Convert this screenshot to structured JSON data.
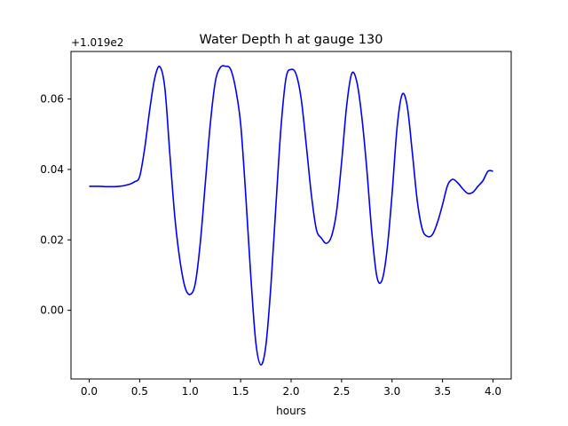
{
  "chart_data": {
    "type": "line",
    "title": "Water Depth h at gauge 130",
    "xlabel": "hours",
    "ylabel": "",
    "y_offset_label": "+1.019e2",
    "xlim": [
      -0.18,
      4.18
    ],
    "ylim": [
      -0.0195,
      0.0735
    ],
    "x_ticks": [
      0.0,
      0.5,
      1.0,
      1.5,
      2.0,
      2.5,
      3.0,
      3.5,
      4.0
    ],
    "x_tick_labels": [
      "0.0",
      "0.5",
      "1.0",
      "1.5",
      "2.0",
      "2.5",
      "3.0",
      "3.5",
      "4.0"
    ],
    "y_ticks": [
      0.0,
      0.02,
      0.04,
      0.06
    ],
    "y_tick_labels": [
      "0.00",
      "0.02",
      "0.04",
      "0.06"
    ],
    "grid": false,
    "series": [
      {
        "color": "#0000ff",
        "x": [
          0.0,
          0.1,
          0.2,
          0.3,
          0.4,
          0.45,
          0.5,
          0.55,
          0.6,
          0.65,
          0.7,
          0.75,
          0.8,
          0.85,
          0.9,
          0.95,
          1.0,
          1.05,
          1.1,
          1.15,
          1.2,
          1.25,
          1.3,
          1.35,
          1.4,
          1.45,
          1.5,
          1.55,
          1.6,
          1.65,
          1.7,
          1.75,
          1.8,
          1.85,
          1.9,
          1.95,
          2.0,
          2.05,
          2.1,
          2.15,
          2.2,
          2.25,
          2.3,
          2.35,
          2.4,
          2.45,
          2.5,
          2.55,
          2.6,
          2.65,
          2.7,
          2.75,
          2.8,
          2.85,
          2.9,
          2.95,
          3.0,
          3.05,
          3.1,
          3.15,
          3.2,
          3.25,
          3.3,
          3.35,
          3.4,
          3.45,
          3.5,
          3.55,
          3.6,
          3.65,
          3.7,
          3.75,
          3.8,
          3.85,
          3.9,
          3.95,
          4.0
        ],
        "y": [
          0.0352,
          0.0352,
          0.0351,
          0.0352,
          0.0358,
          0.0365,
          0.038,
          0.046,
          0.057,
          0.066,
          0.0692,
          0.063,
          0.044,
          0.026,
          0.014,
          0.0065,
          0.0045,
          0.0075,
          0.019,
          0.036,
          0.053,
          0.065,
          0.069,
          0.0693,
          0.0685,
          0.063,
          0.053,
          0.033,
          0.01,
          -0.009,
          -0.0155,
          -0.01,
          0.007,
          0.03,
          0.052,
          0.066,
          0.0684,
          0.067,
          0.06,
          0.047,
          0.033,
          0.023,
          0.0205,
          0.019,
          0.021,
          0.028,
          0.042,
          0.058,
          0.0672,
          0.065,
          0.055,
          0.04,
          0.022,
          0.0095,
          0.0085,
          0.017,
          0.033,
          0.052,
          0.0613,
          0.058,
          0.045,
          0.031,
          0.023,
          0.021,
          0.0215,
          0.025,
          0.03,
          0.0355,
          0.0372,
          0.0362,
          0.0345,
          0.0332,
          0.0335,
          0.0352,
          0.0368,
          0.0395,
          0.0395
        ]
      }
    ]
  }
}
